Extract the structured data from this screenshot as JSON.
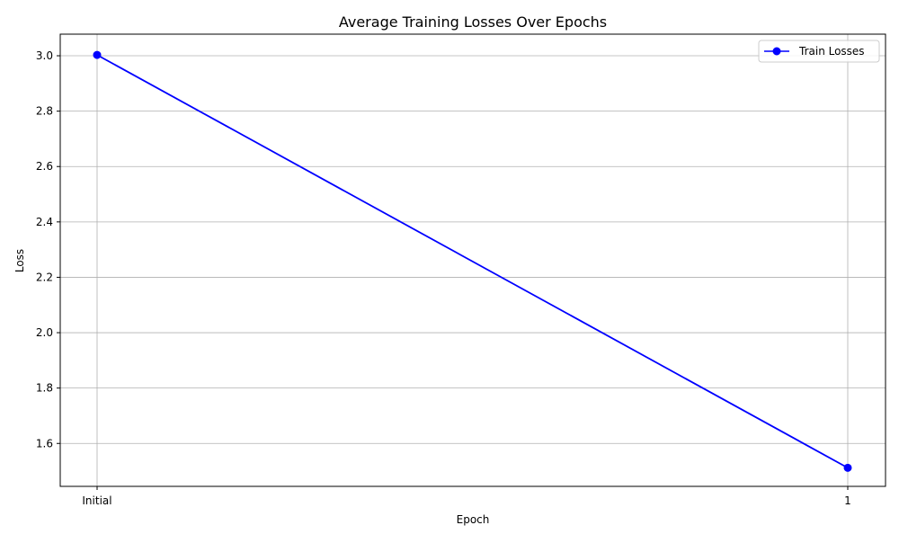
{
  "chart_data": {
    "type": "line",
    "title": "Average Training Losses Over Epochs",
    "xlabel": "Epoch",
    "ylabel": "Loss",
    "categories": [
      "Initial",
      "1"
    ],
    "series": [
      {
        "name": "Train Losses",
        "values": [
          3.003,
          1.512
        ],
        "color": "#0000ff",
        "marker": "circle"
      }
    ],
    "ylim": [
      1.445,
      3.078
    ],
    "yticks": [
      1.6,
      1.8,
      2.0,
      2.2,
      2.4,
      2.6,
      2.8,
      3.0
    ],
    "ytick_labels": [
      "1.6",
      "1.8",
      "2.0",
      "2.2",
      "2.4",
      "2.6",
      "2.8",
      "3.0"
    ],
    "grid": true,
    "legend_position": "top-right"
  }
}
